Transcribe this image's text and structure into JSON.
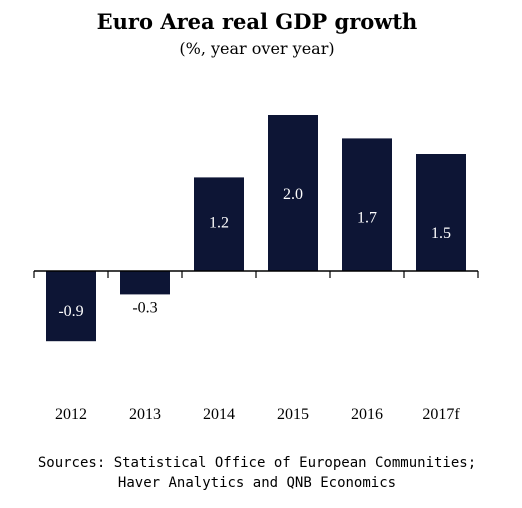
{
  "chart_data": {
    "type": "bar",
    "title": "Euro Area real GDP growth",
    "subtitle": "(%, year over year)",
    "categories": [
      "2012",
      "2013",
      "2014",
      "2015",
      "2016",
      "2017f"
    ],
    "values": [
      -0.9,
      -0.3,
      1.2,
      2.0,
      1.7,
      1.5
    ],
    "data_labels": [
      "-0.9",
      "-0.3",
      "1.2",
      "2.0",
      "1.7",
      "1.5"
    ],
    "xlabel": "",
    "ylabel": "",
    "ylim": [
      -1.0,
      2.1
    ],
    "grid": false,
    "legend": "none",
    "bar_color": "#0d1535",
    "label_color_on_bar": "#ffffff",
    "label_color_off_bar": "#000000"
  },
  "source": {
    "line1": "Sources: Statistical Office of European Communities;",
    "line2": "Haver Analytics and QNB Economics"
  }
}
